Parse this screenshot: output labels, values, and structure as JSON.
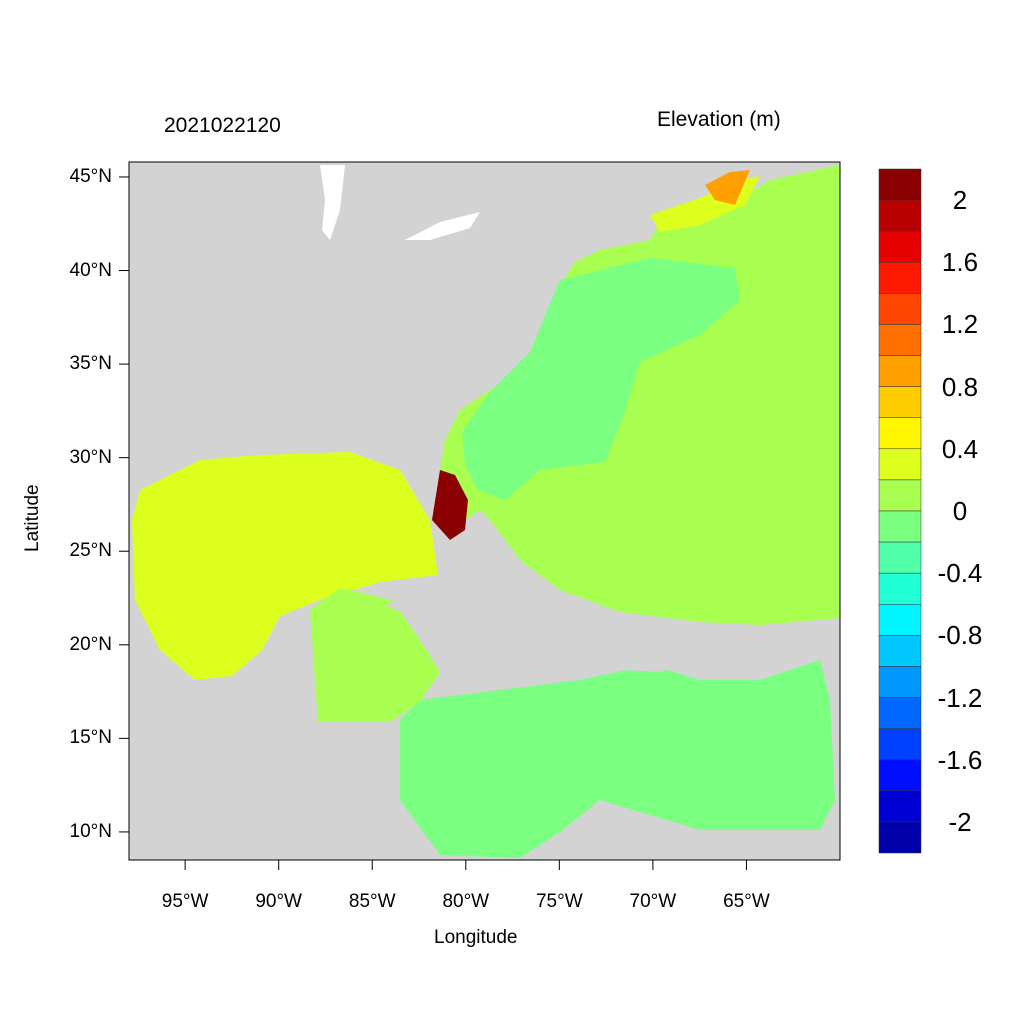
{
  "title_left": "2021022120",
  "title_right": "Elevation (m)",
  "xlabel": "Longitude",
  "ylabel": "Latitude",
  "map": {
    "type": "filled contour map",
    "variable": "Elevation (m)",
    "lon_range": [
      -98,
      -60
    ],
    "lat_range": [
      8.5,
      45.8
    ],
    "x_ticks": [
      "95°W",
      "90°W",
      "85°W",
      "80°W",
      "75°W",
      "70°W",
      "65°W"
    ],
    "y_ticks": [
      "45°N",
      "40°N",
      "35°N",
      "30°N",
      "25°N",
      "20°N",
      "15°N",
      "10°N"
    ],
    "land_color": "#d3d3d3"
  },
  "colorbar": {
    "labels": [
      "2",
      "1.6",
      "1.2",
      "0.8",
      "0.4",
      "0",
      "-0.4",
      "-0.8",
      "-1.2",
      "-1.6",
      "-2"
    ],
    "colors": [
      "#8b0000",
      "#b80000",
      "#e60000",
      "#ff1a00",
      "#ff4500",
      "#ff7000",
      "#ff9f00",
      "#ffcc00",
      "#fff500",
      "#dcff1e",
      "#a8ff50",
      "#7aff80",
      "#50ffaa",
      "#20ffd5",
      "#00f5ff",
      "#00c8ff",
      "#0098ff",
      "#0068ff",
      "#0040ff",
      "#0010ff",
      "#0000d5",
      "#0000aa"
    ]
  }
}
